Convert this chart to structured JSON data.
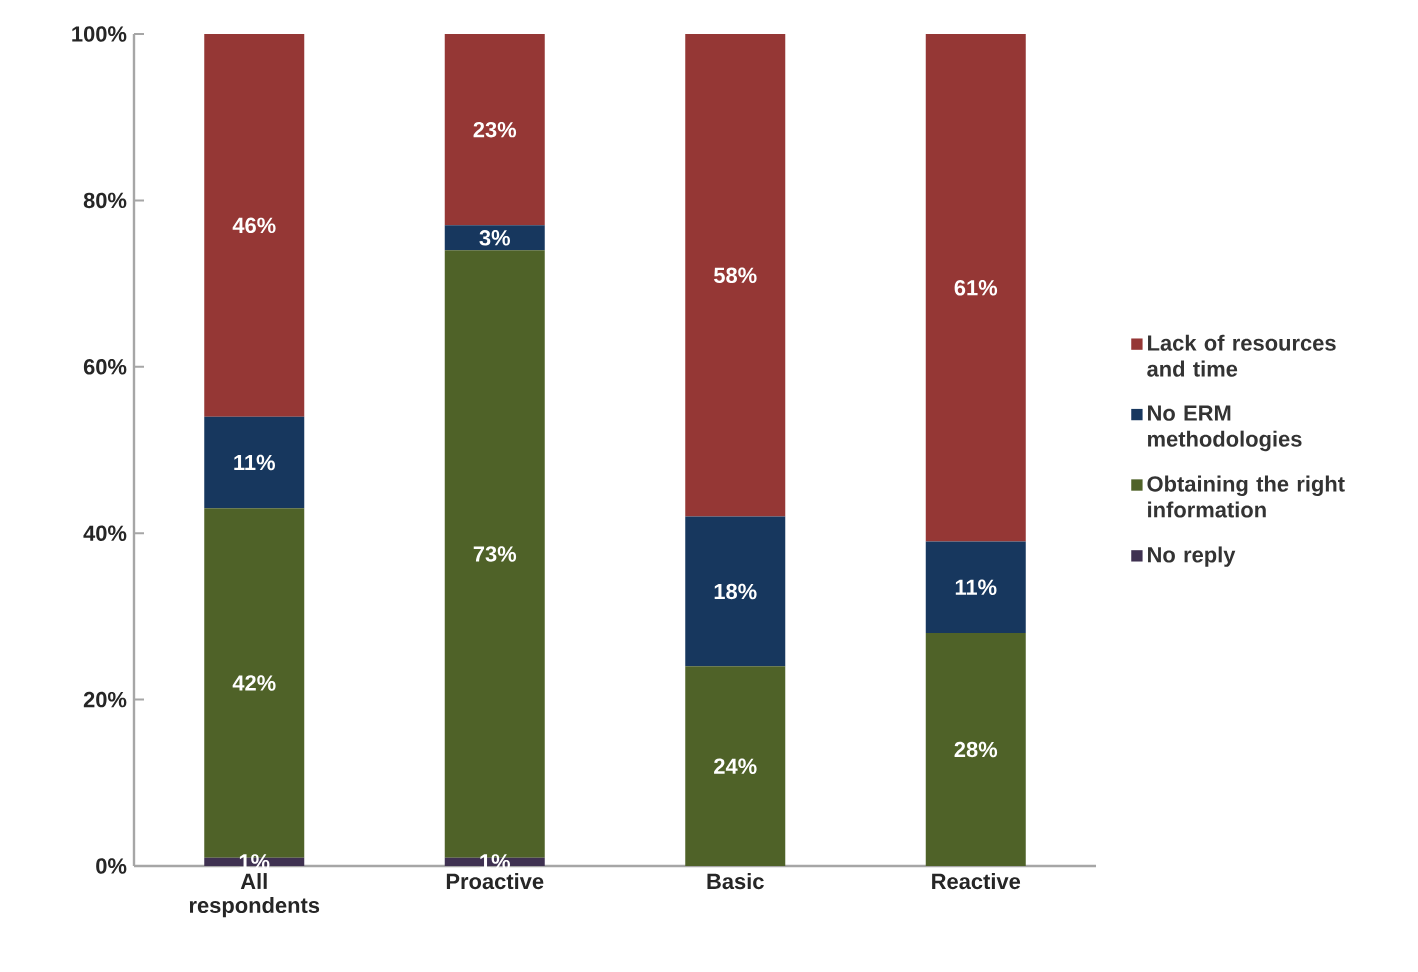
{
  "chart_data": {
    "type": "bar",
    "stacked": true,
    "categories": [
      "All respondents",
      "Proactive",
      "Basic",
      "Reactive"
    ],
    "series": [
      {
        "name": "No reply",
        "color": "#3f3151",
        "values": [
          1,
          1,
          0,
          0
        ],
        "value_labels": [
          "1%",
          "1%",
          null,
          null
        ]
      },
      {
        "name": "Obtaining the right information",
        "color": "#4f6228",
        "values": [
          42,
          73,
          24,
          28
        ],
        "value_labels": [
          "42%",
          "73%",
          "24%",
          "28%"
        ]
      },
      {
        "name": "No ERM methodologies",
        "color": "#17375e",
        "values": [
          11,
          3,
          18,
          11
        ],
        "value_labels": [
          "11%",
          "3%",
          "18%",
          "11%"
        ]
      },
      {
        "name": "Lack of resources and time",
        "color": "#953735",
        "values": [
          46,
          23,
          58,
          61
        ],
        "value_labels": [
          "46%",
          "23%",
          "58%",
          "61%"
        ]
      }
    ],
    "ylim": [
      0,
      100
    ],
    "yticks": [
      {
        "value": 0,
        "label": "0%"
      },
      {
        "value": 20,
        "label": "20%"
      },
      {
        "value": 40,
        "label": "40%"
      },
      {
        "value": 60,
        "label": "60%"
      },
      {
        "value": 80,
        "label": "80%"
      },
      {
        "value": 100,
        "label": "100%"
      }
    ],
    "legend": "right",
    "grid": false
  }
}
